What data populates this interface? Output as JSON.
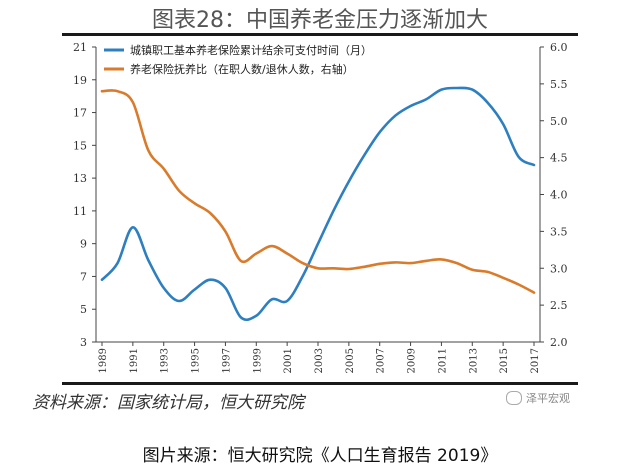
{
  "figure": {
    "title": "图表28：中国养老金压力逐渐加大",
    "source": "资料来源：国家统计局，恒大研究院",
    "watermark": "泽平宏观",
    "caption": "图片来源：恒大研究院《人口生育报告 2019》"
  },
  "chart_data": {
    "type": "line",
    "x": [
      1989,
      1990,
      1991,
      1992,
      1993,
      1994,
      1995,
      1996,
      1997,
      1998,
      1999,
      2000,
      2001,
      2002,
      2003,
      2004,
      2005,
      2006,
      2007,
      2008,
      2009,
      2010,
      2011,
      2012,
      2013,
      2014,
      2015,
      2016,
      2017
    ],
    "x_tick_labels": [
      "1989",
      "1991",
      "1993",
      "1995",
      "1997",
      "1999",
      "2001",
      "2003",
      "2005",
      "2007",
      "2009",
      "2011",
      "2013",
      "2015",
      "2017"
    ],
    "y_left": {
      "lim": [
        3,
        21
      ],
      "ticks": [
        3,
        5,
        7,
        9,
        11,
        13,
        15,
        17,
        19,
        21
      ]
    },
    "y_right": {
      "lim": [
        2.0,
        6.0
      ],
      "ticks": [
        "2.0",
        "2.5",
        "3.0",
        "3.5",
        "4.0",
        "4.5",
        "5.0",
        "5.5",
        "6.0"
      ]
    },
    "series": [
      {
        "name": "城镇职工基本养老保险累计结余可支付时间（月）",
        "axis": "left",
        "color": "#2e7fc0",
        "values": [
          6.8,
          7.8,
          10.0,
          8.0,
          6.3,
          5.5,
          6.2,
          6.8,
          6.3,
          4.5,
          4.6,
          5.6,
          5.5,
          7.0,
          9.0,
          11.0,
          12.8,
          14.4,
          15.8,
          16.8,
          17.4,
          17.8,
          18.4,
          18.5,
          18.4,
          17.6,
          16.3,
          14.3,
          13.8
        ]
      },
      {
        "name": "养老保险抚养比（在职人数/退休人数，右轴）",
        "axis": "right",
        "color": "#d97b2b",
        "values": [
          5.4,
          5.4,
          5.25,
          4.6,
          4.35,
          4.05,
          3.88,
          3.75,
          3.5,
          3.1,
          3.2,
          3.3,
          3.2,
          3.07,
          3.0,
          3.0,
          2.99,
          3.02,
          3.06,
          3.08,
          3.07,
          3.1,
          3.12,
          3.07,
          2.98,
          2.95,
          2.87,
          2.78,
          2.67
        ]
      }
    ],
    "grid": false,
    "legend": "top-left"
  }
}
